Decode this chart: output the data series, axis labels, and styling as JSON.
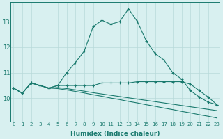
{
  "xlabel": "Humidex (Indice chaleur)",
  "x_values": [
    0,
    1,
    2,
    3,
    4,
    5,
    6,
    7,
    8,
    9,
    10,
    11,
    12,
    13,
    14,
    15,
    16,
    17,
    18,
    19,
    20,
    21,
    22,
    23
  ],
  "line1": [
    10.4,
    10.2,
    10.6,
    10.5,
    10.4,
    10.5,
    11.0,
    11.4,
    11.85,
    12.8,
    13.05,
    12.9,
    13.0,
    13.5,
    13.0,
    12.25,
    11.75,
    11.5,
    11.0,
    10.75,
    10.3,
    10.05,
    9.85,
    9.75
  ],
  "line2": [
    10.4,
    10.2,
    10.6,
    10.5,
    10.4,
    10.5,
    10.5,
    10.5,
    10.5,
    10.5,
    10.6,
    10.6,
    10.6,
    10.6,
    10.65,
    10.65,
    10.65,
    10.65,
    10.65,
    10.65,
    10.55,
    10.3,
    10.05,
    9.75
  ],
  "line3": [
    10.4,
    10.2,
    10.6,
    10.5,
    10.4,
    10.42,
    10.38,
    10.33,
    10.28,
    10.22,
    10.17,
    10.12,
    10.07,
    10.02,
    9.97,
    9.92,
    9.87,
    9.82,
    9.77,
    9.72,
    9.67,
    9.62,
    9.57,
    9.52
  ],
  "line4": [
    10.4,
    10.2,
    10.6,
    10.5,
    10.4,
    10.38,
    10.33,
    10.27,
    10.21,
    10.14,
    10.08,
    10.01,
    9.95,
    9.88,
    9.82,
    9.75,
    9.69,
    9.62,
    9.56,
    9.49,
    9.43,
    9.36,
    9.3,
    9.23
  ],
  "line_color": "#1a7a6e",
  "bg_color": "#d8f0f0",
  "grid_color": "#b8dada",
  "ylim": [
    9.1,
    13.75
  ],
  "yticks": [
    10,
    11,
    12,
    13
  ],
  "xticks": [
    0,
    1,
    2,
    3,
    4,
    5,
    6,
    7,
    8,
    9,
    10,
    11,
    12,
    13,
    14,
    15,
    16,
    17,
    18,
    19,
    20,
    21,
    22,
    23
  ]
}
